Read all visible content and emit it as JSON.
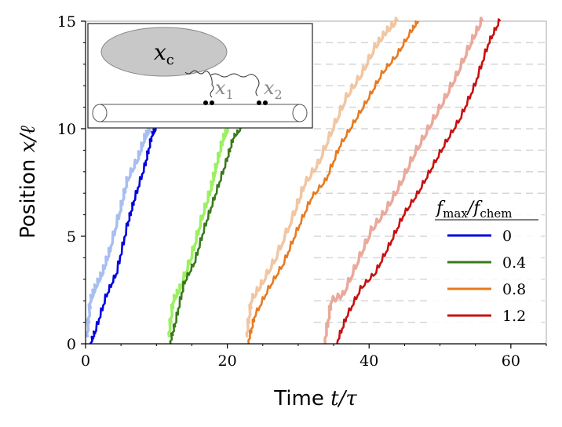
{
  "chart_data": {
    "type": "line",
    "xlabel_text": "Time ",
    "xlabel_math": "t/τ",
    "ylabel_text": "Position ",
    "ylabel_math": "x/ℓ",
    "xlim": [
      0,
      65
    ],
    "ylim": [
      0,
      15
    ],
    "xticks": [
      0,
      20,
      40,
      60
    ],
    "yticks": [
      0,
      5,
      10,
      15
    ],
    "xtick_labels": [
      "0",
      "20",
      "40",
      "60"
    ],
    "ytick_labels": [
      "0",
      "5",
      "10",
      "15"
    ],
    "dashed_levels": [
      1,
      2,
      3,
      4,
      5,
      6,
      7,
      8,
      9,
      10,
      11,
      12,
      13,
      14
    ],
    "grid": "dashed horizontal lines at unit positions, right of inset",
    "legend": {
      "title_main": "f",
      "title_sub_1": "max",
      "title_slash": "/f",
      "title_sub_2": "chem",
      "placement": "center-right"
    },
    "series": [
      {
        "name": "0",
        "color": "#0000e0",
        "light_color": "#9fb7f0",
        "x": [
          0.8,
          1.5,
          3.0,
          4.5,
          6.0,
          7.0,
          8.5,
          9.5,
          10.0
        ],
        "y": [
          0.0,
          0.6,
          2.2,
          3.3,
          5.5,
          6.7,
          8.3,
          9.7,
          10.0
        ],
        "light_x": [
          0.3,
          0.8,
          1.5,
          2.5,
          3.5,
          5.0,
          6.0,
          7.5,
          8.5,
          9.2
        ],
        "light_y": [
          0.3,
          2.0,
          2.6,
          3.3,
          4.3,
          6.2,
          7.6,
          8.6,
          9.6,
          10.0
        ]
      },
      {
        "name": "0.4",
        "color": "#3a7a1a",
        "light_color": "#90ee50",
        "x": [
          12.0,
          12.8,
          14.0,
          15.5,
          17.0,
          18.5,
          20.0,
          21.0,
          22.0
        ],
        "y": [
          0.0,
          1.0,
          2.8,
          3.8,
          5.5,
          7.0,
          8.5,
          9.6,
          10.0
        ],
        "light_x": [
          11.8,
          12.5,
          13.5,
          15.0,
          16.5,
          17.8,
          18.5,
          19.5,
          20.2
        ],
        "light_y": [
          0.3,
          2.0,
          2.6,
          4.0,
          5.8,
          7.2,
          8.2,
          9.5,
          10.0
        ]
      },
      {
        "name": "0.8",
        "color": "#e87a20",
        "light_color": "#f0c098",
        "x": [
          23.0,
          24.0,
          26.0,
          28.0,
          30.0,
          32.0,
          34.0,
          36.0,
          38.0,
          40.0,
          42.0,
          44.0,
          46.0,
          47.0
        ],
        "y": [
          0.0,
          1.3,
          2.6,
          3.7,
          5.3,
          6.8,
          7.6,
          9.2,
          10.3,
          11.4,
          12.6,
          13.4,
          14.5,
          15.0
        ],
        "light_x": [
          22.8,
          23.5,
          25.0,
          27.0,
          29.5,
          31.0,
          33.0,
          35.0,
          37.0,
          39.0,
          41.0,
          42.5,
          44.0
        ],
        "light_y": [
          0.3,
          2.0,
          2.8,
          4.0,
          6.0,
          7.4,
          8.4,
          10.0,
          11.5,
          12.5,
          13.8,
          14.5,
          15.0
        ]
      },
      {
        "name": "1.2",
        "color": "#c81010",
        "light_color": "#e8a090",
        "x": [
          35.5,
          37.0,
          39.0,
          41.0,
          43.0,
          45.0,
          47.0,
          49.0,
          51.0,
          53.0,
          55.0,
          57.0,
          58.5
        ],
        "y": [
          0.0,
          1.3,
          2.6,
          3.3,
          4.6,
          6.0,
          7.0,
          8.2,
          9.4,
          10.5,
          12.0,
          14.0,
          15.0
        ],
        "light_x": [
          33.8,
          34.8,
          36.5,
          38.5,
          40.5,
          42.5,
          44.5,
          46.5,
          48.5,
          50.5,
          52.5,
          54.5,
          56.0
        ],
        "light_y": [
          0.0,
          2.0,
          2.3,
          3.8,
          5.3,
          6.2,
          7.4,
          8.8,
          10.0,
          11.2,
          12.5,
          14.0,
          15.0
        ]
      }
    ]
  },
  "inset": {
    "label_c_main": "x",
    "label_c_sub": "c",
    "label_1_main": "x",
    "label_1_sub": "1",
    "label_2_main": "x",
    "label_2_sub": "2"
  }
}
